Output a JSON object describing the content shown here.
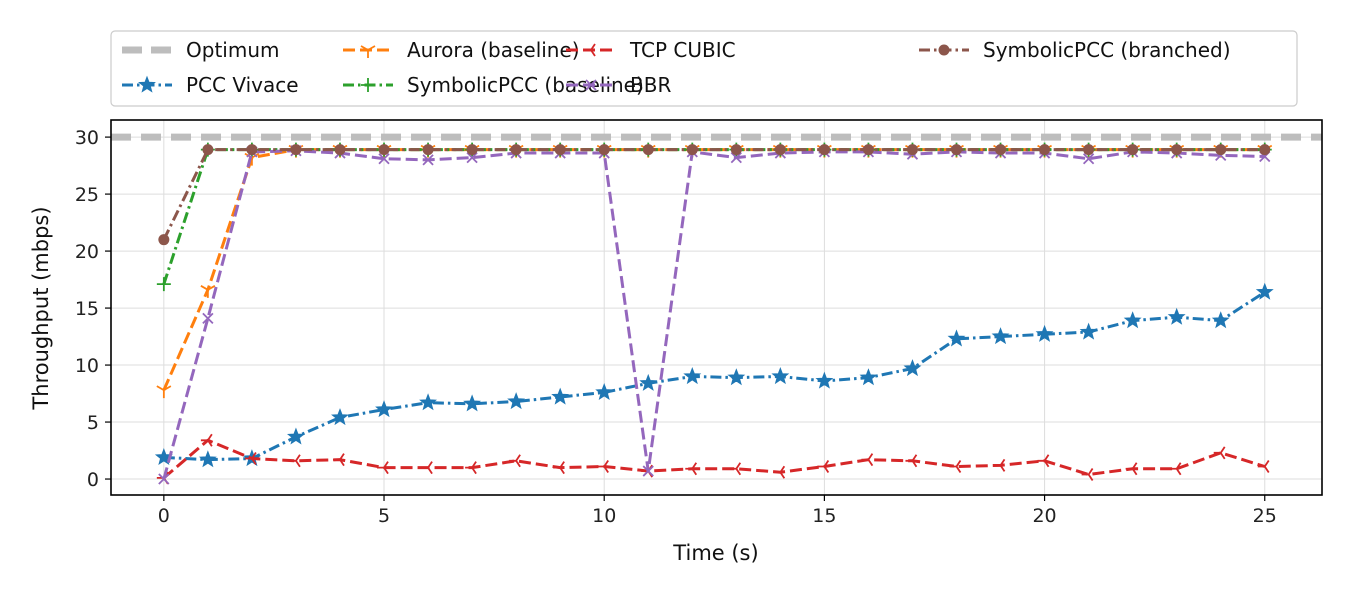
{
  "chart_data": {
    "type": "line",
    "xlabel": "Time (s)",
    "ylabel": "Throughput (mbps)",
    "xlim": [
      -1.2,
      26.3
    ],
    "ylim": [
      -1.4,
      31.5
    ],
    "x_ticks": [
      0,
      5,
      10,
      15,
      20,
      25
    ],
    "y_ticks": [
      0,
      5,
      10,
      15,
      20,
      25,
      30
    ],
    "grid": true,
    "legend_position": "top",
    "legend_columns": 4,
    "series": [
      {
        "name": "Optimum",
        "color": "#bdbdbd",
        "dash": "long",
        "marker": "none",
        "x": [
          -1.2,
          26.3
        ],
        "y": [
          30,
          30
        ]
      },
      {
        "name": "PCC Vivace",
        "color": "#1f77b4",
        "dash": "dashdot",
        "marker": "star",
        "x": [
          0,
          1,
          2,
          3,
          4,
          5,
          6,
          7,
          8,
          9,
          10,
          11,
          12,
          13,
          14,
          15,
          16,
          17,
          18,
          19,
          20,
          21,
          22,
          23,
          24,
          25
        ],
        "y": [
          1.9,
          1.7,
          1.8,
          3.7,
          5.4,
          6.1,
          6.7,
          6.6,
          6.8,
          7.2,
          7.6,
          8.4,
          9.0,
          8.9,
          9.0,
          8.6,
          8.9,
          9.7,
          12.3,
          12.5,
          12.7,
          12.9,
          13.9,
          14.2,
          13.9,
          16.4
        ]
      },
      {
        "name": "Aurora (baseline)",
        "color": "#ff7f0e",
        "dash": "dashed",
        "marker": "tri",
        "x": [
          0,
          1,
          2,
          3,
          4,
          5,
          6,
          7,
          8,
          9,
          10,
          11,
          12,
          13,
          14,
          15,
          16,
          17,
          18,
          19,
          20,
          21,
          22,
          23,
          24,
          25
        ],
        "y": [
          7.8,
          16.6,
          28.2,
          28.9,
          28.9,
          28.9,
          28.9,
          28.9,
          28.9,
          28.9,
          28.9,
          28.9,
          28.9,
          28.9,
          28.9,
          28.9,
          28.9,
          28.9,
          28.9,
          28.9,
          28.9,
          28.9,
          28.9,
          28.9,
          28.9,
          28.9
        ]
      },
      {
        "name": "SymbolicPCC (baseline)",
        "color": "#2ca02c",
        "dash": "dashdot",
        "marker": "plus",
        "x": [
          0,
          1,
          2,
          3,
          4,
          5,
          6,
          7,
          8,
          9,
          10,
          11,
          12,
          13,
          14,
          15,
          16,
          17,
          18,
          19,
          20,
          21,
          22,
          23,
          24,
          25
        ],
        "y": [
          17.1,
          28.9,
          28.9,
          28.9,
          28.9,
          28.9,
          28.9,
          28.9,
          28.9,
          28.9,
          28.9,
          28.9,
          28.9,
          28.9,
          28.9,
          28.9,
          28.9,
          28.9,
          28.9,
          28.9,
          28.9,
          28.9,
          28.9,
          28.9,
          28.9,
          28.9
        ]
      },
      {
        "name": "TCP CUBIC",
        "color": "#d62728",
        "dash": "dashed",
        "marker": "tri-right",
        "x": [
          0,
          1,
          2,
          3,
          4,
          5,
          6,
          7,
          8,
          9,
          10,
          11,
          12,
          13,
          14,
          15,
          16,
          17,
          18,
          19,
          20,
          21,
          22,
          23,
          24,
          25
        ],
        "y": [
          0.1,
          3.4,
          1.8,
          1.6,
          1.7,
          1.0,
          1.0,
          1.0,
          1.6,
          1.0,
          1.1,
          0.7,
          0.9,
          0.9,
          0.6,
          1.1,
          1.7,
          1.6,
          1.1,
          1.2,
          1.6,
          0.4,
          0.9,
          0.9,
          2.3,
          1.1
        ]
      },
      {
        "name": "BBR",
        "color": "#9467bd",
        "dash": "dashed",
        "marker": "x",
        "x": [
          0,
          1,
          2,
          3,
          4,
          5,
          6,
          7,
          8,
          9,
          10,
          11,
          12,
          13,
          14,
          15,
          16,
          17,
          18,
          19,
          20,
          21,
          22,
          23,
          24,
          25
        ],
        "y": [
          0.0,
          14.1,
          28.7,
          28.8,
          28.6,
          28.1,
          28.0,
          28.2,
          28.6,
          28.6,
          28.6,
          0.7,
          28.7,
          28.2,
          28.6,
          28.7,
          28.7,
          28.5,
          28.7,
          28.6,
          28.6,
          28.1,
          28.7,
          28.6,
          28.4,
          28.3
        ]
      },
      {
        "name": "SymbolicPCC (branched)",
        "color": "#8c564b",
        "dash": "dashdot",
        "marker": "circle",
        "x": [
          0,
          1,
          2,
          3,
          4,
          5,
          6,
          7,
          8,
          9,
          10,
          11,
          12,
          13,
          14,
          15,
          16,
          17,
          18,
          19,
          20,
          21,
          22,
          23,
          24,
          25
        ],
        "y": [
          21.0,
          28.9,
          28.9,
          28.9,
          28.9,
          28.9,
          28.9,
          28.9,
          28.9,
          28.9,
          28.9,
          28.9,
          28.9,
          28.9,
          28.9,
          28.9,
          28.9,
          28.9,
          28.9,
          28.9,
          28.9,
          28.9,
          28.9,
          28.9,
          28.9,
          28.9
        ]
      }
    ]
  }
}
